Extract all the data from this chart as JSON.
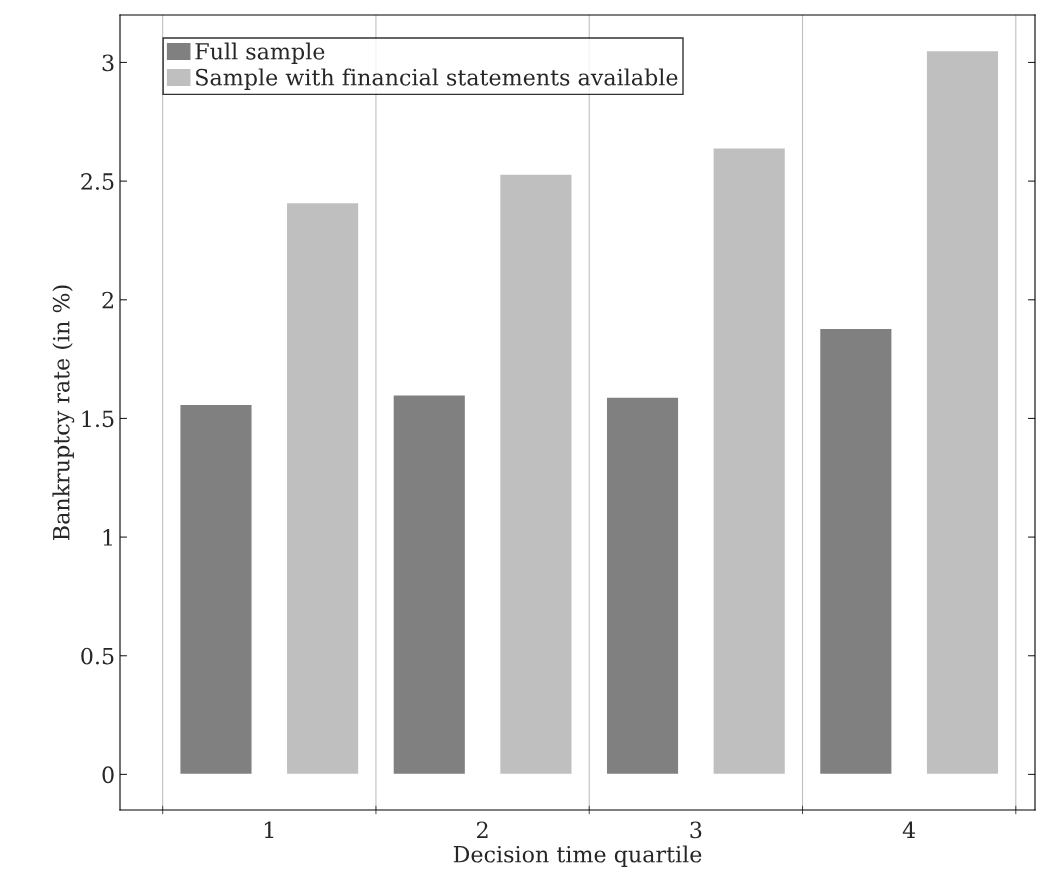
{
  "chart_data": {
    "type": "bar",
    "xlabel": "Decision time quartile",
    "ylabel": "Bankruptcy rate (in %)",
    "categories": [
      "1",
      "2",
      "3",
      "4"
    ],
    "series": [
      {
        "name": "Full sample",
        "color": "#808080",
        "values": [
          1.56,
          1.6,
          1.59,
          1.88
        ]
      },
      {
        "name": "Sample with financial statements available",
        "color": "#bfbfbf",
        "values": [
          2.41,
          2.53,
          2.64,
          3.05
        ]
      }
    ],
    "ylim": [
      -0.15,
      3.2
    ],
    "yticks": [
      0,
      0.5,
      1,
      1.5,
      2,
      2.5,
      3
    ],
    "grid": "x",
    "legend": "top left"
  }
}
